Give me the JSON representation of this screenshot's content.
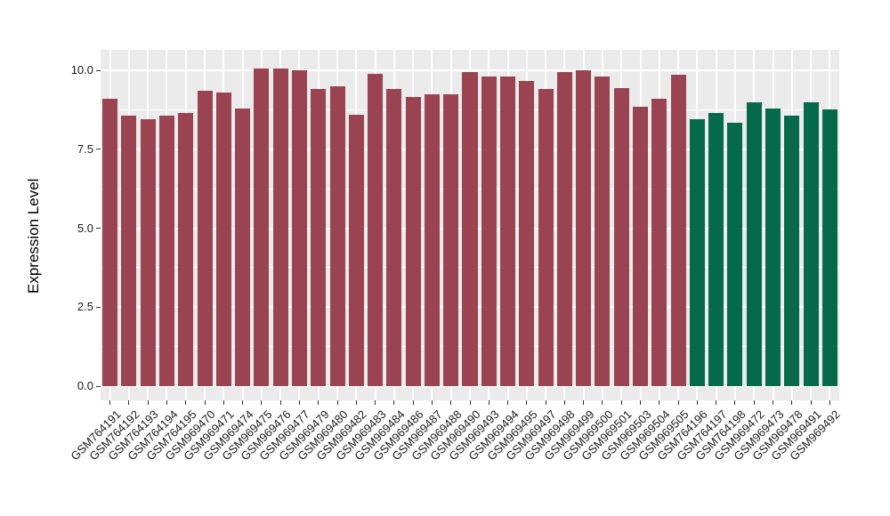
{
  "chart_data": {
    "type": "bar",
    "title": "",
    "xlabel": "",
    "ylabel": "Expression Level",
    "ylim": [
      0,
      10.65
    ],
    "yticks": [
      0.0,
      2.5,
      5.0,
      7.5,
      10.0
    ],
    "ytick_labels": [
      "0.0",
      "2.5",
      "5.0",
      "7.5",
      "10.0"
    ],
    "yminor": [
      1.25,
      3.75,
      6.25,
      8.75
    ],
    "grid": "on",
    "legend": "none",
    "panel_background": "#EBEBEB",
    "grid_color": "#FFFFFF",
    "palette": {
      "maroon": "#9A4351",
      "green": "#046A4A"
    },
    "categories": [
      "GSM764191",
      "GSM764192",
      "GSM764193",
      "GSM764194",
      "GSM764195",
      "GSM969470",
      "GSM969471",
      "GSM969474",
      "GSM969475",
      "GSM969476",
      "GSM969477",
      "GSM969479",
      "GSM969480",
      "GSM969482",
      "GSM969483",
      "GSM969484",
      "GSM969486",
      "GSM969487",
      "GSM969488",
      "GSM969490",
      "GSM969493",
      "GSM969494",
      "GSM969495",
      "GSM969497",
      "GSM969498",
      "GSM969499",
      "GSM969500",
      "GSM969501",
      "GSM969503",
      "GSM969504",
      "GSM969505",
      "GSM764196",
      "GSM764197",
      "GSM764198",
      "GSM969472",
      "GSM969473",
      "GSM969478",
      "GSM969491",
      "GSM969492"
    ],
    "values": [
      9.1,
      8.55,
      8.45,
      8.55,
      8.65,
      9.35,
      9.3,
      8.8,
      10.05,
      10.05,
      10.0,
      9.4,
      9.5,
      8.6,
      9.9,
      9.4,
      9.15,
      9.25,
      9.25,
      9.95,
      9.8,
      9.8,
      9.65,
      9.4,
      9.95,
      10.0,
      9.8,
      9.45,
      8.85,
      9.1,
      9.85,
      8.45,
      8.65,
      8.35,
      9.0,
      8.8,
      8.55,
      9.0,
      8.75
    ],
    "bar_groups": [
      "maroon",
      "maroon",
      "maroon",
      "maroon",
      "maroon",
      "maroon",
      "maroon",
      "maroon",
      "maroon",
      "maroon",
      "maroon",
      "maroon",
      "maroon",
      "maroon",
      "maroon",
      "maroon",
      "maroon",
      "maroon",
      "maroon",
      "maroon",
      "maroon",
      "maroon",
      "maroon",
      "maroon",
      "maroon",
      "maroon",
      "maroon",
      "maroon",
      "maroon",
      "maroon",
      "maroon",
      "green",
      "green",
      "green",
      "green",
      "green",
      "green",
      "green",
      "green"
    ]
  }
}
